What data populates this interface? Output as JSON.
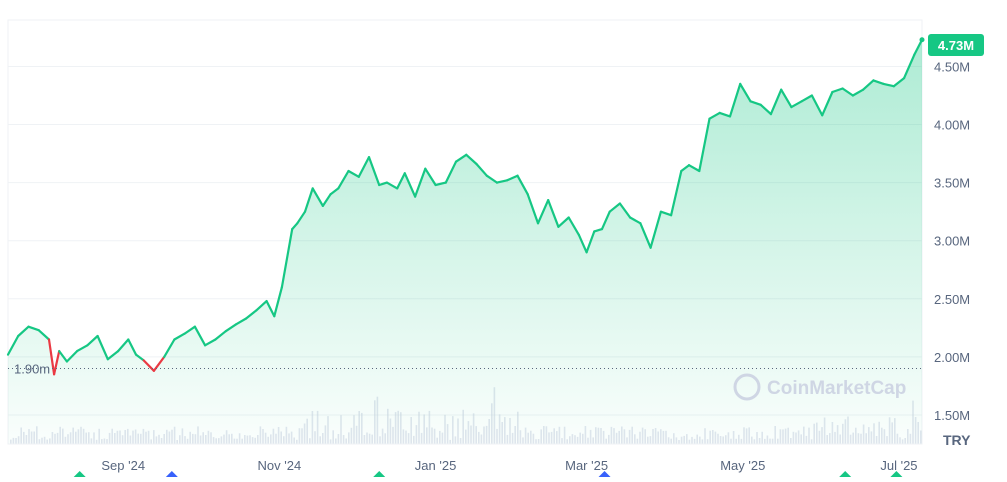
{
  "chart_data": {
    "type": "area",
    "currency_label": "TRY",
    "watermark": "CoinMarketCap",
    "current_value": 4730000,
    "current_value_label": "4.73M",
    "baseline_value": 1900000,
    "baseline_label": "1.90m",
    "ylim": [
      1250000,
      4900000
    ],
    "y_ticks": [
      {
        "value": 4500000,
        "label": "4.50M"
      },
      {
        "value": 4000000,
        "label": "4.00M"
      },
      {
        "value": 3500000,
        "label": "3.50M"
      },
      {
        "value": 3000000,
        "label": "3.00M"
      },
      {
        "value": 2500000,
        "label": "2.50M"
      },
      {
        "value": 2000000,
        "label": "2.00M"
      },
      {
        "value": 1500000,
        "label": "1.50M"
      }
    ],
    "xlim": [
      "2024-07-18",
      "2025-07-10"
    ],
    "x_ticks": [
      {
        "date": "2024-09-01",
        "label": "Sep '24"
      },
      {
        "date": "2024-11-01",
        "label": "Nov '24"
      },
      {
        "date": "2025-01-01",
        "label": "Jan '25"
      },
      {
        "date": "2025-03-01",
        "label": "Mar '25"
      },
      {
        "date": "2025-05-01",
        "label": "May '25"
      },
      {
        "date": "2025-07-01",
        "label": "Jul '25"
      }
    ],
    "event_markers": [
      {
        "date": "2024-08-15",
        "color": "#16c784"
      },
      {
        "date": "2024-09-20",
        "color": "#3861fb"
      },
      {
        "date": "2024-12-10",
        "color": "#16c784"
      },
      {
        "date": "2025-03-08",
        "color": "#3861fb"
      },
      {
        "date": "2025-06-10",
        "color": "#16c784"
      },
      {
        "date": "2025-06-30",
        "color": "#16c784"
      }
    ],
    "series": [
      {
        "x": [
          "2024-07-18",
          "2024-07-22",
          "2024-07-26",
          "2024-07-30",
          "2024-08-03",
          "2024-08-05",
          "2024-08-07",
          "2024-08-10",
          "2024-08-14",
          "2024-08-18",
          "2024-08-22",
          "2024-08-26",
          "2024-08-30",
          "2024-09-03",
          "2024-09-06",
          "2024-09-09",
          "2024-09-13",
          "2024-09-17",
          "2024-09-21",
          "2024-09-25",
          "2024-09-29",
          "2024-10-03",
          "2024-10-07",
          "2024-10-11",
          "2024-10-15",
          "2024-10-19",
          "2024-10-23",
          "2024-10-27",
          "2024-10-30",
          "2024-11-02",
          "2024-11-06",
          "2024-11-08",
          "2024-11-11",
          "2024-11-14",
          "2024-11-18",
          "2024-11-21",
          "2024-11-24",
          "2024-11-28",
          "2024-12-02",
          "2024-12-06",
          "2024-12-10",
          "2024-12-13",
          "2024-12-17",
          "2024-12-20",
          "2024-12-24",
          "2024-12-28",
          "2025-01-01",
          "2025-01-05",
          "2025-01-09",
          "2025-01-13",
          "2025-01-17",
          "2025-01-21",
          "2025-01-25",
          "2025-01-29",
          "2025-02-02",
          "2025-02-06",
          "2025-02-10",
          "2025-02-14",
          "2025-02-18",
          "2025-02-22",
          "2025-02-26",
          "2025-03-01",
          "2025-03-04",
          "2025-03-07",
          "2025-03-10",
          "2025-03-14",
          "2025-03-18",
          "2025-03-22",
          "2025-03-26",
          "2025-03-30",
          "2025-04-03",
          "2025-04-07",
          "2025-04-10",
          "2025-04-14",
          "2025-04-18",
          "2025-04-22",
          "2025-04-26",
          "2025-04-30",
          "2025-05-04",
          "2025-05-08",
          "2025-05-12",
          "2025-05-16",
          "2025-05-20",
          "2025-05-24",
          "2025-05-28",
          "2025-06-01",
          "2025-06-05",
          "2025-06-09",
          "2025-06-13",
          "2025-06-17",
          "2025-06-21",
          "2025-06-25",
          "2025-06-29",
          "2025-07-03",
          "2025-07-07",
          "2025-07-10"
        ],
        "y": [
          2020000,
          2180000,
          2260000,
          2230000,
          2150000,
          1850000,
          2050000,
          1960000,
          2050000,
          2100000,
          2180000,
          1980000,
          2050000,
          2150000,
          2020000,
          1970000,
          1880000,
          2000000,
          2150000,
          2200000,
          2260000,
          2100000,
          2150000,
          2220000,
          2280000,
          2330000,
          2400000,
          2480000,
          2350000,
          2600000,
          3100000,
          3150000,
          3250000,
          3450000,
          3300000,
          3400000,
          3450000,
          3600000,
          3550000,
          3720000,
          3480000,
          3500000,
          3450000,
          3580000,
          3380000,
          3620000,
          3480000,
          3500000,
          3680000,
          3740000,
          3660000,
          3560000,
          3500000,
          3520000,
          3560000,
          3400000,
          3150000,
          3350000,
          3120000,
          3200000,
          3050000,
          2900000,
          3080000,
          3100000,
          3250000,
          3320000,
          3200000,
          3150000,
          2940000,
          3250000,
          3220000,
          3600000,
          3650000,
          3600000,
          4050000,
          4100000,
          4070000,
          4350000,
          4200000,
          4170000,
          4090000,
          4300000,
          4150000,
          4200000,
          4250000,
          4080000,
          4280000,
          4310000,
          4250000,
          4300000,
          4380000,
          4350000,
          4330000,
          4400000,
          4600000,
          4730000
        ]
      }
    ]
  }
}
